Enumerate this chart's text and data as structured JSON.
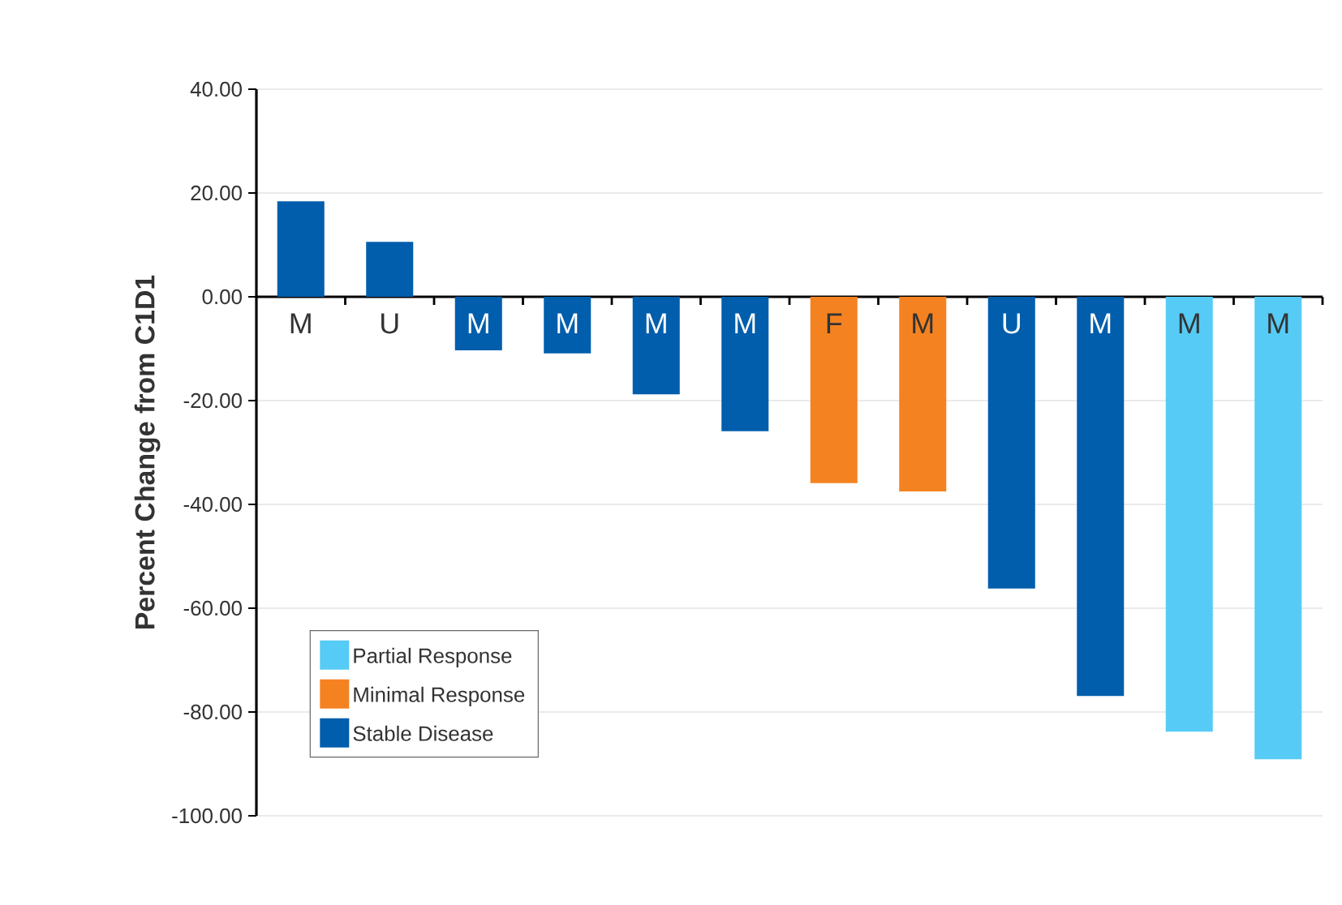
{
  "chart_data": {
    "type": "bar",
    "ylabel": "Percent Change from C1D1",
    "categories": [
      "M",
      "U",
      "M",
      "M",
      "M",
      "M",
      "F",
      "M",
      "U",
      "M",
      "M",
      "M"
    ],
    "series": [
      {
        "name": "Partial Response",
        "color": "#56cbf5",
        "values": [
          null,
          null,
          null,
          null,
          null,
          null,
          null,
          null,
          null,
          null,
          -83.8,
          -89.1
        ]
      },
      {
        "name": "Minimal Response",
        "color": "#f58220",
        "values": [
          null,
          null,
          null,
          null,
          null,
          null,
          -35.9,
          -37.5,
          null,
          null,
          null,
          null
        ]
      },
      {
        "name": "Stable Disease",
        "color": "#005eac",
        "values": [
          18.4,
          10.6,
          -10.3,
          -10.9,
          -18.8,
          -25.9,
          null,
          null,
          -56.2,
          -76.9,
          null,
          null
        ]
      }
    ],
    "ylim": [
      -100,
      40
    ],
    "yticks": [
      {
        "value": 40,
        "label": "40.00"
      },
      {
        "value": 20,
        "label": "20.00"
      },
      {
        "value": 0,
        "label": "0.00"
      },
      {
        "value": -20,
        "label": "-20.00"
      },
      {
        "value": -40,
        "label": "-40.00"
      },
      {
        "value": -60,
        "label": "-60.00"
      },
      {
        "value": -80,
        "label": "-80.00"
      },
      {
        "value": -100,
        "label": "-100.00"
      }
    ],
    "grid": "y",
    "legend": "bottom left"
  }
}
